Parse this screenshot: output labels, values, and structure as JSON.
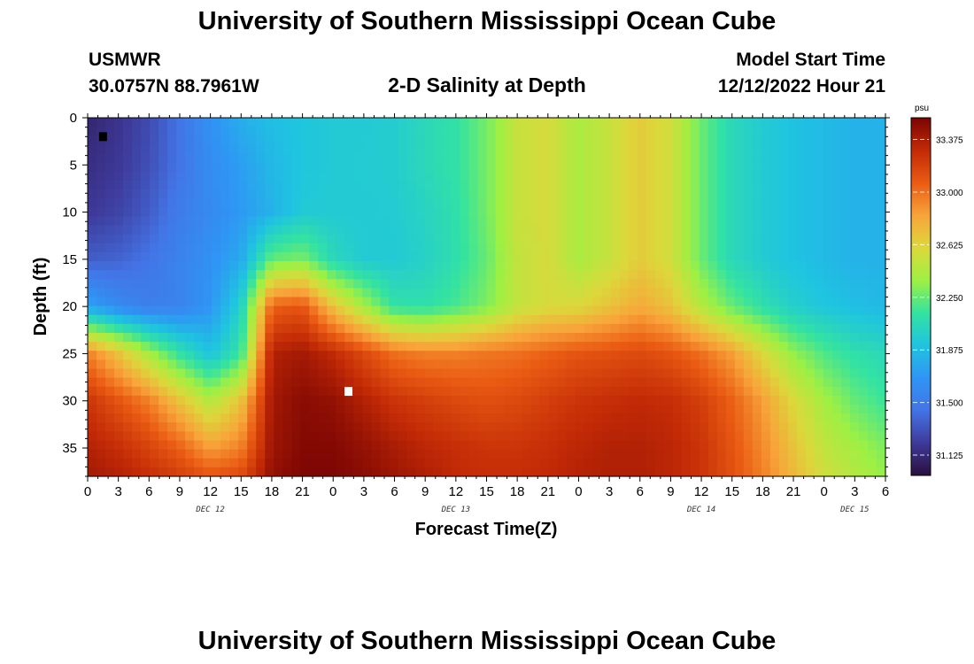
{
  "header": {
    "title": "University of Southern Mississippi Ocean Cube",
    "station": "USMWR",
    "coords": "30.0757N  88.7961W",
    "subtitle": "2-D Salinity at Depth",
    "model_start_label": "Model Start Time",
    "model_start_value": "12/12/2022 Hour 21"
  },
  "footer": {
    "title": "University of Southern Mississippi Ocean Cube"
  },
  "colorbar": {
    "unit": "psu",
    "ticks": [
      "33.375",
      "33.000",
      "32.625",
      "32.250",
      "31.875",
      "31.500",
      "31.125"
    ],
    "tick_values": [
      33.375,
      33.0,
      32.625,
      32.25,
      31.875,
      31.5,
      31.125
    ],
    "range": [
      30.98,
      33.53
    ],
    "colors": [
      "#2a0f3e",
      "#3e3a9a",
      "#4374e6",
      "#2f95f5",
      "#1fc4e0",
      "#34e3a0",
      "#9ef043",
      "#dcd83b",
      "#f8a43a",
      "#ea5b13",
      "#c22a06",
      "#7a0403"
    ]
  },
  "chart_data": {
    "type": "heatmap",
    "xlabel": "Forecast Time(Z)",
    "ylabel": "Depth (ft)",
    "x_ticks": [
      "0",
      "3",
      "6",
      "9",
      "12",
      "15",
      "18",
      "21",
      "0",
      "3",
      "6",
      "9",
      "12",
      "15",
      "18",
      "21",
      "0",
      "3",
      "6",
      "9",
      "12",
      "15",
      "18",
      "21",
      "0",
      "3",
      "6"
    ],
    "x_range_hours": [
      0,
      78
    ],
    "day_labels": [
      {
        "label": "DEC 12",
        "hour": 12
      },
      {
        "label": "DEC 13",
        "hour": 36
      },
      {
        "label": "DEC 14",
        "hour": 60
      },
      {
        "label": "DEC 15",
        "hour": 75
      }
    ],
    "y_ticks": [
      "0",
      "5",
      "10",
      "15",
      "20",
      "25",
      "30",
      "35"
    ],
    "y_tick_values": [
      0,
      5,
      10,
      15,
      20,
      25,
      30,
      35
    ],
    "ylim": [
      0,
      38
    ],
    "y_inverted": true,
    "grid_hours": [
      0,
      3,
      6,
      9,
      12,
      15,
      18,
      21,
      24,
      27,
      30,
      33,
      36,
      39,
      42,
      45,
      48,
      51,
      54,
      57,
      60,
      63,
      66,
      69,
      72,
      75,
      78
    ],
    "grid_depths": [
      0,
      5,
      10,
      15,
      20,
      25,
      30,
      35,
      38
    ],
    "salinity_psu": [
      [
        31.1,
        31.18,
        31.28,
        31.45,
        31.65,
        31.8,
        31.88,
        31.92,
        31.95,
        31.95,
        31.97,
        32.05,
        32.12,
        32.28,
        32.52,
        32.58,
        32.42,
        32.52,
        32.66,
        32.56,
        32.26,
        32.05,
        31.96,
        31.9,
        31.86,
        31.82,
        31.82
      ],
      [
        31.15,
        31.2,
        31.3,
        31.45,
        31.62,
        31.72,
        31.85,
        31.92,
        31.95,
        31.96,
        31.97,
        32.05,
        32.12,
        32.28,
        32.52,
        32.58,
        32.42,
        32.52,
        32.66,
        32.56,
        32.26,
        32.05,
        31.96,
        31.9,
        31.86,
        31.82,
        31.82
      ],
      [
        31.2,
        31.25,
        31.35,
        31.5,
        31.6,
        31.7,
        31.82,
        31.95,
        31.95,
        31.95,
        31.96,
        32.02,
        32.1,
        32.28,
        32.52,
        32.58,
        32.42,
        32.52,
        32.66,
        32.56,
        32.26,
        32.05,
        31.96,
        31.9,
        31.86,
        31.82,
        31.82
      ],
      [
        31.35,
        31.38,
        31.45,
        31.55,
        31.65,
        31.78,
        32.25,
        32.3,
        32.05,
        31.95,
        31.95,
        32.0,
        32.1,
        32.25,
        32.5,
        32.58,
        32.42,
        32.52,
        32.66,
        32.56,
        32.26,
        32.05,
        31.96,
        31.9,
        31.86,
        31.82,
        31.82
      ],
      [
        31.75,
        31.6,
        31.52,
        31.55,
        31.68,
        32.0,
        33.05,
        33.1,
        32.7,
        32.4,
        32.12,
        32.1,
        32.18,
        32.3,
        32.5,
        32.58,
        32.6,
        32.7,
        32.8,
        32.7,
        32.45,
        32.25,
        32.1,
        31.98,
        31.92,
        31.88,
        31.85
      ],
      [
        32.95,
        32.7,
        32.4,
        32.12,
        31.9,
        32.15,
        33.35,
        33.4,
        33.3,
        33.15,
        33.0,
        32.95,
        32.95,
        32.98,
        33.0,
        33.05,
        33.1,
        33.12,
        33.15,
        33.1,
        33.0,
        32.85,
        32.6,
        32.35,
        32.2,
        32.1,
        32.05
      ],
      [
        33.25,
        33.1,
        32.95,
        32.7,
        32.45,
        32.7,
        33.4,
        33.48,
        33.45,
        33.35,
        33.25,
        33.2,
        33.15,
        33.12,
        33.15,
        33.2,
        33.25,
        33.28,
        33.3,
        33.28,
        33.2,
        33.05,
        32.85,
        32.6,
        32.4,
        32.25,
        32.15
      ],
      [
        33.35,
        33.28,
        33.18,
        33.05,
        32.85,
        32.95,
        33.42,
        33.5,
        33.5,
        33.45,
        33.38,
        33.32,
        33.28,
        33.25,
        33.25,
        33.28,
        33.32,
        33.35,
        33.35,
        33.32,
        33.25,
        33.1,
        32.92,
        32.7,
        32.5,
        32.4,
        32.3
      ],
      [
        33.4,
        33.35,
        33.28,
        33.2,
        33.1,
        33.15,
        33.45,
        33.52,
        33.52,
        33.48,
        33.42,
        33.36,
        33.3,
        33.28,
        33.28,
        33.3,
        33.34,
        33.36,
        33.36,
        33.32,
        33.25,
        33.12,
        32.95,
        32.75,
        32.55,
        32.45,
        32.35
      ]
    ],
    "markers": [
      {
        "hour": 1.5,
        "depth": 2,
        "color": "#000000"
      },
      {
        "hour": 25.5,
        "depth": 29,
        "color": "#ffffff"
      }
    ]
  }
}
